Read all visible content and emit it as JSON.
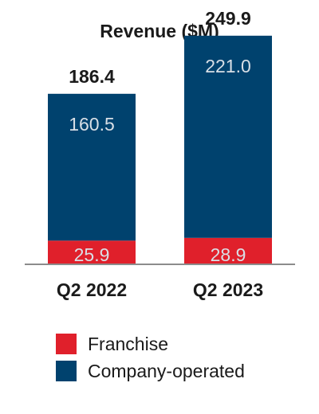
{
  "chart_data": {
    "type": "bar",
    "stacked": true,
    "title": "Revenue ($M)",
    "categories": [
      "Q2 2022",
      "Q2 2023"
    ],
    "series": [
      {
        "name": "Franchise",
        "values": [
          25.9,
          28.9
        ],
        "color": "#e0202b"
      },
      {
        "name": "Company-operated",
        "values": [
          160.5,
          221.0
        ],
        "color": "#00426e"
      }
    ],
    "total_labels": [
      "186.4",
      "249.9"
    ],
    "segment_labels": [
      [
        "25.9",
        "28.9"
      ],
      [
        "160.5",
        "221.0"
      ]
    ],
    "legend_position": "bottom",
    "grid": false,
    "ylim": [
      0,
      275
    ]
  },
  "colors": {
    "segment_label": "#d9dfe6",
    "total_label": "#1a1a1a",
    "axis": "#8c8c8c"
  }
}
